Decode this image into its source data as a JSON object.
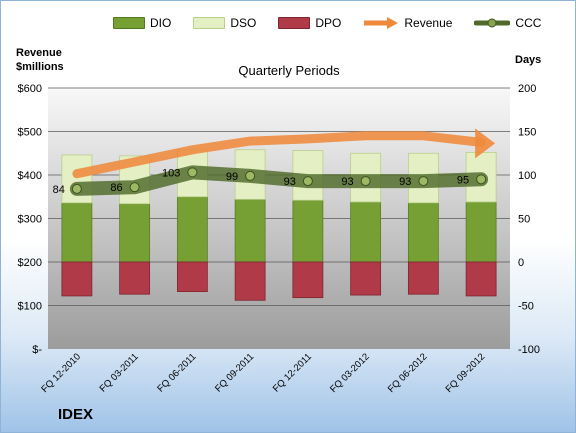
{
  "legend": [
    {
      "label": "DIO",
      "color": "#77a034",
      "kind": "swatch"
    },
    {
      "label": "DSO",
      "color": "#e4efc4",
      "kind": "swatch"
    },
    {
      "label": "DPO",
      "color": "#b03a48",
      "kind": "swatch"
    },
    {
      "label": "Revenue",
      "color": "#ef8a3c",
      "kind": "arrow"
    },
    {
      "label": "CCC",
      "color": "#4f6a2a",
      "kind": "line"
    }
  ],
  "left_axis_title_line1": "Revenue",
  "left_axis_title_line2": "$millions",
  "right_axis_title": "Days",
  "subtitle": "Quarterly Periods",
  "ticker": "IDEX",
  "colors": {
    "dio": "#77a034",
    "dso": "#e4efc4",
    "dpo": "#b03a48",
    "revenue": "#ef8a3c",
    "ccc": "#4f6a2a",
    "plot_bg_top": "#f8f8f8",
    "plot_bg_bottom": "#9c9c9c"
  },
  "chart_data": {
    "type": "bar",
    "categories": [
      "FQ 12-2010",
      "FQ 03-2011",
      "FQ 06-2011",
      "FQ 09-2011",
      "FQ 12-2011",
      "FQ 03-2012",
      "FQ 06-2012",
      "FQ 09-2012"
    ],
    "left_axis": {
      "min": 0,
      "max": 600,
      "ticks": [
        0,
        100,
        200,
        300,
        400,
        500,
        600
      ],
      "tick_labels": [
        "$-",
        "$100",
        "$200",
        "$300",
        "$400",
        "$500",
        "$600"
      ]
    },
    "right_axis": {
      "min": -100,
      "max": 200,
      "ticks": [
        -100,
        -50,
        0,
        50,
        100,
        150,
        200
      ],
      "tick_labels": [
        "-100",
        "-50",
        "0",
        "50",
        "100",
        "150",
        "200"
      ]
    },
    "series": [
      {
        "name": "DIO",
        "axis": "right",
        "values": [
          68,
          67,
          75,
          72,
          71,
          69,
          68,
          69
        ]
      },
      {
        "name": "DSO",
        "axis": "right",
        "values": [
          55,
          55,
          54,
          57,
          57,
          56,
          57,
          57
        ]
      },
      {
        "name": "DPO",
        "axis": "right",
        "values": [
          -39,
          -37,
          -34,
          -44,
          -41,
          -38,
          -37,
          -39
        ]
      },
      {
        "name": "Revenue",
        "axis": "left",
        "values": [
          403,
          430,
          458,
          478,
          483,
          490,
          490,
          475
        ]
      },
      {
        "name": "CCC",
        "axis": "right",
        "values": [
          84,
          86,
          103,
          99,
          93,
          93,
          93,
          95
        ]
      }
    ],
    "data_labels": [
      "84",
      "86",
      "103",
      "99",
      "93",
      "93",
      "93",
      "95"
    ],
    "grid": true
  }
}
